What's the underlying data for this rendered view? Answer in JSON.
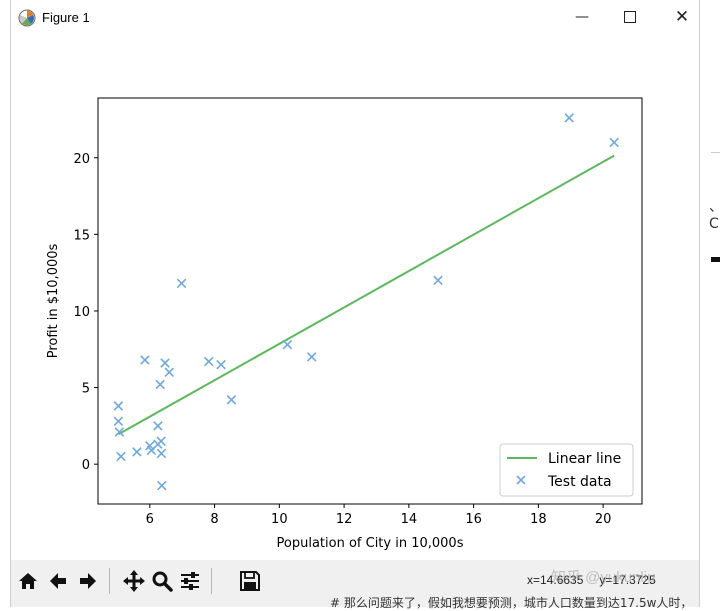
{
  "window": {
    "title": "Figure 1",
    "minimize_glyph": "—",
    "close_glyph": "✕"
  },
  "chart_data": {
    "type": "scatter",
    "title": "",
    "xlabel": "Population of City in 10,000s",
    "ylabel": "Profit in $10,000s",
    "xlim": [
      4.4,
      21.2
    ],
    "ylim": [
      -2.6,
      23.9
    ],
    "xticks": [
      6,
      8,
      10,
      12,
      14,
      16,
      18,
      20
    ],
    "yticks": [
      0,
      5,
      10,
      15,
      20
    ],
    "grid": false,
    "legend_position": "lower-right",
    "series": [
      {
        "name": "Linear line",
        "kind": "line",
        "color": "#5cb85c",
        "x": [
          5.03,
          20.34
        ],
        "y": [
          1.95,
          20.14
        ]
      },
      {
        "name": "Test data",
        "kind": "scatter",
        "marker": "x",
        "color": "#6fa8dc",
        "x": [
          5.03,
          5.03,
          5.06,
          5.11,
          5.6,
          5.85,
          6.0,
          6.05,
          6.25,
          6.25,
          6.32,
          6.35,
          6.36,
          6.37,
          6.47,
          6.6,
          6.98,
          7.82,
          8.2,
          8.52,
          10.25,
          11.0,
          14.9,
          18.95,
          20.34
        ],
        "y": [
          3.8,
          2.8,
          2.1,
          0.5,
          0.8,
          6.8,
          1.2,
          0.9,
          2.5,
          1.3,
          5.2,
          1.5,
          0.7,
          -1.4,
          6.6,
          6.0,
          11.8,
          6.7,
          6.5,
          4.2,
          7.8,
          7.0,
          12.0,
          22.6,
          21.0
        ]
      }
    ]
  },
  "toolbar": {
    "buttons": [
      "home-icon",
      "back-arrow-icon",
      "forward-arrow-icon",
      "pan-icon",
      "zoom-icon",
      "configure-subplots-icon",
      "save-icon"
    ],
    "coord_x": "x=14.6635",
    "coord_y": "y=17.3725"
  },
  "watermark": "知乎 @yukunliu",
  "background": {
    "fragment": "、C",
    "bottom_text": "# 那么问题来了，假如我想要预测，城市人口数量到达17.5w人时，"
  }
}
